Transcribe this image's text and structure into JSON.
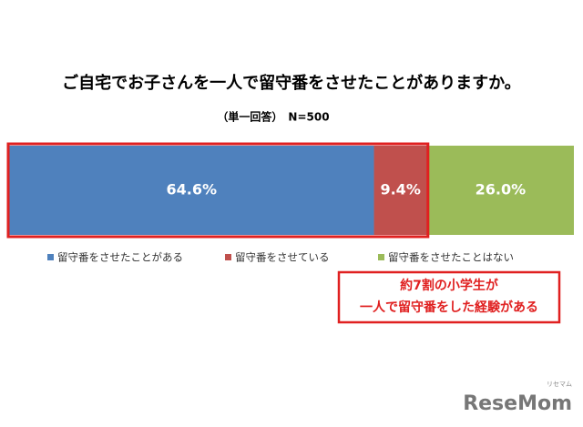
{
  "chart_data": {
    "type": "stacked-bar",
    "title": "ご自宅でお子さんを一人で留守番をさせたことがありますか。",
    "subtitle": "（単一回答）　N=500",
    "xlim": [
      0,
      100
    ],
    "series": [
      {
        "name": "留守番をさせたことがある",
        "color": "#4f81bd",
        "values": [
          64.6
        ],
        "value_labels": [
          "64.6%"
        ]
      },
      {
        "name": "留守番をさせている",
        "color": "#c0504d",
        "values": [
          9.4
        ],
        "value_labels": [
          "9.4%"
        ]
      },
      {
        "name": "留守番をさせたことはない",
        "color": "#9bbb59",
        "values": [
          26.0
        ],
        "value_labels": [
          "26.0%"
        ]
      }
    ],
    "annotation": [
      "約7割の小学生が",
      "一人で留守番をした経験がある"
    ],
    "highlight_color": "#e02020",
    "logo": {
      "text": "ReseMom",
      "kana": "リセマム"
    }
  }
}
